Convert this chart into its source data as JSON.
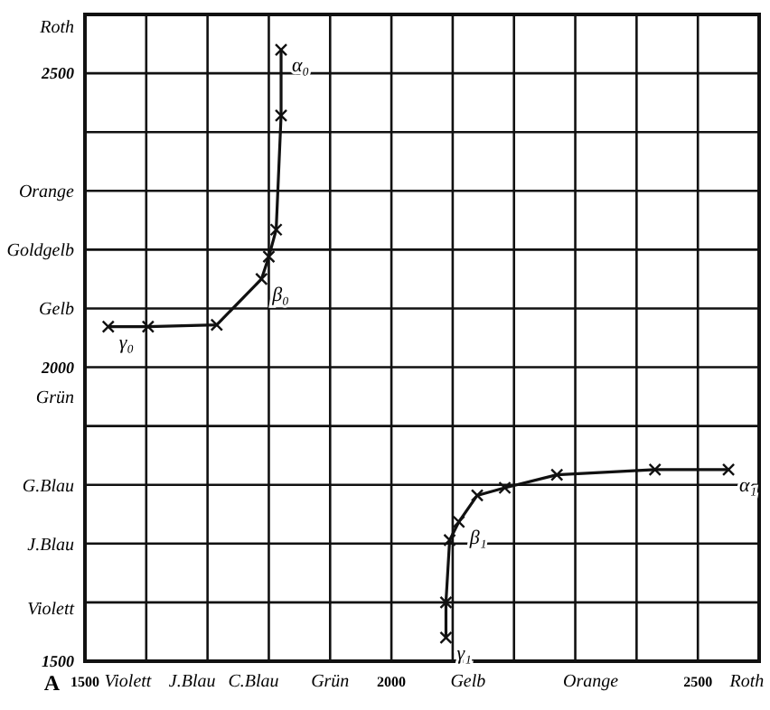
{
  "chart_data": {
    "type": "line",
    "xlabel": "A",
    "xlim": [
      1500,
      2600
    ],
    "ylim": [
      1500,
      2600
    ],
    "xticks": [
      1500,
      {
        "value": 1570,
        "label": "Violett"
      },
      {
        "value": 1675,
        "label": "J.Blau"
      },
      {
        "value": 1775,
        "label": "C.Blau"
      },
      {
        "value": 1900,
        "label": "Grün"
      },
      2000,
      {
        "value": 2125,
        "label": "Gelb"
      },
      {
        "value": 2325,
        "label": "Orange"
      },
      2500,
      {
        "value": 2580,
        "label": "Roth"
      }
    ],
    "yticks": [
      1500,
      {
        "value": 1590,
        "label": "Violett"
      },
      {
        "value": 1700,
        "label": "J.Blau"
      },
      {
        "value": 1800,
        "label": "G.Blau"
      },
      {
        "value": 1950,
        "label": "Grün"
      },
      2000,
      {
        "value": 2100,
        "label": "Gelb"
      },
      {
        "value": 2200,
        "label": "Goldgelb"
      },
      {
        "value": 2300,
        "label": "Orange"
      },
      2500,
      {
        "value": 2580,
        "label": "Roth"
      }
    ],
    "grid": true,
    "marker": "cross",
    "line_style": "solid",
    "series": [
      {
        "color": "#111111",
        "x": [
          1538,
          1603,
          1715,
          1788,
          1800,
          1812,
          1820,
          1820
        ],
        "values": [
          2069,
          2069,
          2072,
          2150,
          2188,
          2234,
          2428,
          2540
        ]
      },
      {
        "color": "#111111",
        "x": [
          2089,
          2089,
          2095,
          2110,
          2140,
          2185,
          2270,
          2430,
          2550
        ],
        "values": [
          1540,
          1600,
          1706,
          1737,
          1782,
          1795,
          1817,
          1826,
          1826
        ]
      }
    ],
    "annotations": [
      {
        "text": "γ₀",
        "x": 1538,
        "y": 2069
      },
      {
        "text": "β₀",
        "x": 1788,
        "y": 2150
      },
      {
        "text": "α₀",
        "x": 1820,
        "y": 2540
      },
      {
        "text": "γ₁",
        "x": 2089,
        "y": 1540
      },
      {
        "text": "β₁",
        "x": 2110,
        "y": 1737
      },
      {
        "text": "α₁",
        "x": 2550,
        "y": 1826
      }
    ]
  }
}
